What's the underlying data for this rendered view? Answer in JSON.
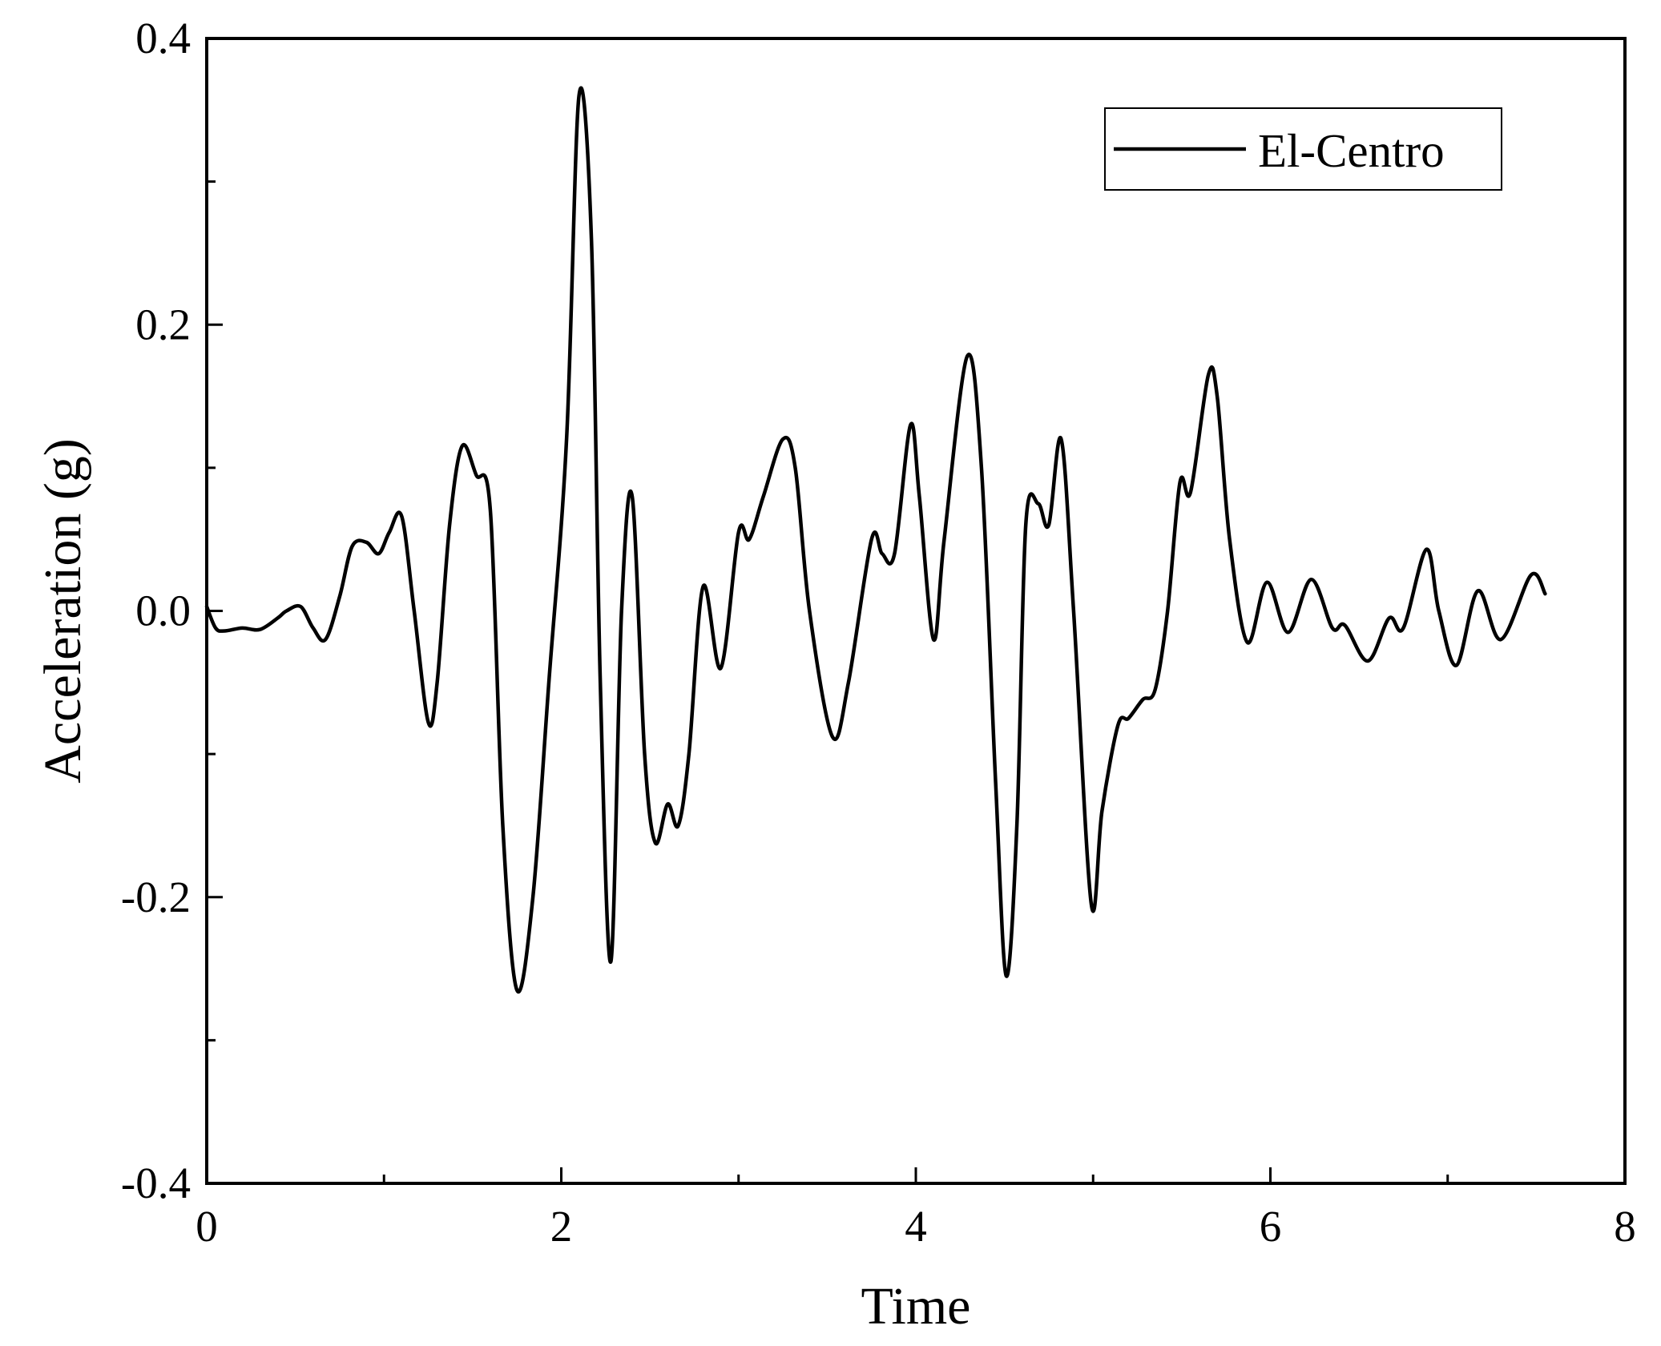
{
  "chart_data": {
    "type": "line",
    "title": "",
    "xlabel": "Time",
    "ylabel": "Acceleration (g)",
    "xlim": [
      0,
      8
    ],
    "ylim": [
      -0.4,
      0.4
    ],
    "x_ticks": [
      0,
      2,
      4,
      6,
      8
    ],
    "x_tick_labels": [
      "0",
      "2",
      "4",
      "6",
      "8"
    ],
    "x_minor_ticks": [
      1,
      3,
      5,
      7
    ],
    "y_ticks": [
      -0.4,
      -0.2,
      0.0,
      0.2,
      0.4
    ],
    "y_tick_labels": [
      "-0.4",
      "-0.2",
      "0.0",
      "0.2",
      "0.4"
    ],
    "y_minor_ticks": [
      -0.3,
      -0.1,
      0.1,
      0.3
    ],
    "grid": false,
    "legend_position": "top-right",
    "line_color": "#000000",
    "series": [
      {
        "name": "El-Centro",
        "x": [
          0,
          0.05,
          0.1,
          0.2,
          0.3,
          0.4,
          0.45,
          0.53,
          0.6,
          0.67,
          0.75,
          0.82,
          0.9,
          0.97,
          1.03,
          1.1,
          1.17,
          1.25,
          1.3,
          1.37,
          1.44,
          1.52,
          1.6,
          1.67,
          1.75,
          1.84,
          1.93,
          2.03,
          2.1,
          2.17,
          2.22,
          2.28,
          2.34,
          2.4,
          2.47,
          2.53,
          2.6,
          2.66,
          2.72,
          2.8,
          2.9,
          3.0,
          3.06,
          3.14,
          3.25,
          3.32,
          3.4,
          3.53,
          3.62,
          3.75,
          3.81,
          3.88,
          3.97,
          4.02,
          4.1,
          4.16,
          4.29,
          4.37,
          4.45,
          4.51,
          4.57,
          4.62,
          4.69,
          4.75,
          4.82,
          4.89,
          4.99,
          5.05,
          5.14,
          5.2,
          5.28,
          5.35,
          5.42,
          5.49,
          5.55,
          5.65,
          5.7,
          5.77,
          5.87,
          5.98,
          6.1,
          6.23,
          6.35,
          6.42,
          6.55,
          6.67,
          6.75,
          6.88,
          6.95,
          7.05,
          7.17,
          7.3,
          7.47,
          7.55
        ],
        "y": [
          0.003,
          -0.012,
          -0.014,
          -0.012,
          -0.013,
          -0.005,
          0.0,
          0.003,
          -0.012,
          -0.02,
          0.01,
          0.045,
          0.048,
          0.04,
          0.055,
          0.066,
          0.0,
          -0.078,
          -0.05,
          0.06,
          0.115,
          0.095,
          0.07,
          -0.15,
          -0.265,
          -0.2,
          -0.05,
          0.12,
          0.36,
          0.26,
          -0.05,
          -0.245,
          0.0,
          0.08,
          -0.1,
          -0.162,
          -0.135,
          -0.15,
          -0.1,
          0.017,
          -0.04,
          0.055,
          0.05,
          0.08,
          0.12,
          0.1,
          0.0,
          -0.088,
          -0.05,
          0.05,
          0.04,
          0.04,
          0.13,
          0.08,
          -0.02,
          0.05,
          0.178,
          0.1,
          -0.12,
          -0.255,
          -0.15,
          0.06,
          0.075,
          0.06,
          0.12,
          0.0,
          -0.205,
          -0.14,
          -0.08,
          -0.075,
          -0.062,
          -0.055,
          0.0,
          0.09,
          0.083,
          0.165,
          0.15,
          0.05,
          -0.022,
          0.02,
          -0.015,
          0.022,
          -0.012,
          -0.01,
          -0.035,
          -0.005,
          -0.012,
          0.043,
          0.0,
          -0.038,
          0.014,
          -0.02,
          0.025,
          0.012
        ]
      }
    ]
  }
}
